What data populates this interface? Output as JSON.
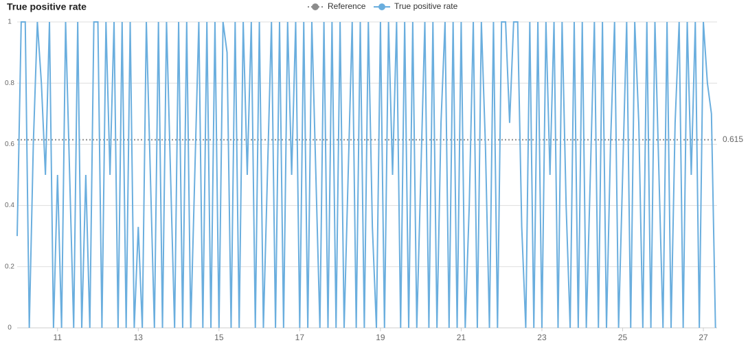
{
  "chart_data": {
    "type": "line",
    "title": "True positive rate",
    "x": [
      10,
      10.1,
      10.2,
      10.3,
      10.4,
      10.5,
      10.6,
      10.7,
      10.8,
      10.9,
      11,
      11.1,
      11.2,
      11.3,
      11.4,
      11.5,
      11.6,
      11.7,
      11.8,
      11.9,
      12,
      12.1,
      12.2,
      12.3,
      12.4,
      12.5,
      12.6,
      12.7,
      12.8,
      12.9,
      13,
      13.1,
      13.2,
      13.3,
      13.4,
      13.5,
      13.6,
      13.7,
      13.8,
      13.9,
      14,
      14.1,
      14.2,
      14.3,
      14.4,
      14.5,
      14.6,
      14.7,
      14.8,
      14.9,
      15,
      15.1,
      15.2,
      15.3,
      15.4,
      15.5,
      15.6,
      15.7,
      15.8,
      15.9,
      16,
      16.1,
      16.2,
      16.3,
      16.4,
      16.5,
      16.6,
      16.7,
      16.8,
      16.9,
      17,
      17.1,
      17.2,
      17.3,
      17.4,
      17.5,
      17.6,
      17.7,
      17.8,
      17.9,
      18,
      18.1,
      18.2,
      18.3,
      18.4,
      18.5,
      18.6,
      18.7,
      18.8,
      18.9,
      19,
      19.1,
      19.2,
      19.3,
      19.4,
      19.5,
      19.6,
      19.7,
      19.8,
      19.9,
      20,
      20.1,
      20.2,
      20.3,
      20.4,
      20.5,
      20.6,
      20.7,
      20.8,
      20.9,
      21,
      21.1,
      21.2,
      21.3,
      21.4,
      21.5,
      21.6,
      21.7,
      21.8,
      21.9,
      22,
      22.1,
      22.2,
      22.3,
      22.4,
      22.5,
      22.6,
      22.7,
      22.8,
      22.9,
      23,
      23.1,
      23.2,
      23.3,
      23.4,
      23.5,
      23.6,
      23.7,
      23.8,
      23.9,
      24,
      24.1,
      24.2,
      24.3,
      24.4,
      24.5,
      24.6,
      24.7,
      24.8,
      24.9,
      25,
      25.1,
      25.2,
      25.3,
      25.4,
      25.5,
      25.6,
      25.7,
      25.8,
      25.9,
      26,
      26.1,
      26.2,
      26.3,
      26.4,
      26.5,
      26.6,
      26.7,
      26.8,
      26.9,
      27,
      27.1,
      27.2,
      27.3
    ],
    "series": [
      {
        "name": "True positive rate",
        "color": "#6aaede",
        "values": [
          0.3,
          1,
          1,
          0,
          0.6,
          1,
          0.8,
          0.5,
          1,
          0,
          0.5,
          0,
          1,
          0.5,
          0,
          1,
          0,
          0.5,
          0,
          1,
          1,
          0,
          1,
          0.5,
          1,
          0,
          1,
          0,
          1,
          0,
          0.33,
          0,
          1,
          0.5,
          0,
          1,
          0,
          1,
          0.5,
          0,
          1,
          0,
          1,
          0,
          0.5,
          1,
          0,
          1,
          0,
          1,
          0,
          1,
          0.9,
          0,
          1,
          0,
          1,
          0.5,
          1,
          0,
          1,
          0,
          0.5,
          1,
          0,
          1,
          0,
          1,
          0.5,
          1,
          0,
          1,
          0,
          1,
          0.5,
          0,
          1,
          0,
          1,
          0,
          1,
          0,
          0.5,
          1,
          0,
          1,
          0,
          1,
          0.33,
          0,
          1,
          0,
          1,
          0.5,
          1,
          0,
          1,
          0,
          1,
          0,
          0.5,
          1,
          0,
          1,
          0,
          0.67,
          1,
          0,
          1,
          0,
          1,
          0,
          0.4,
          1,
          0,
          1,
          0.6,
          0,
          1,
          0,
          1,
          1,
          0.67,
          1,
          1,
          0.33,
          0,
          1,
          0,
          1,
          0,
          1,
          0.5,
          1,
          0,
          1,
          0.4,
          0,
          1,
          0,
          1,
          0,
          0.5,
          1,
          0,
          1,
          0,
          0.6,
          1,
          0,
          0.5,
          1,
          0,
          1,
          0.67,
          0,
          1,
          0,
          1,
          0.5,
          0,
          1,
          0,
          0.67,
          1,
          0,
          1,
          0.5,
          1,
          0,
          1,
          0.8,
          0.7,
          0
        ]
      }
    ],
    "reference": {
      "name": "Reference",
      "value": 0.615,
      "color": "#8c8c8c"
    },
    "xlim": [
      10,
      27.34
    ],
    "ylim": [
      0,
      1
    ],
    "xticks": [
      11,
      13,
      15,
      17,
      19,
      21,
      23,
      25,
      27
    ],
    "yticks": [
      0,
      0.2,
      0.4,
      0.6,
      0.8,
      1
    ],
    "grid": true
  }
}
